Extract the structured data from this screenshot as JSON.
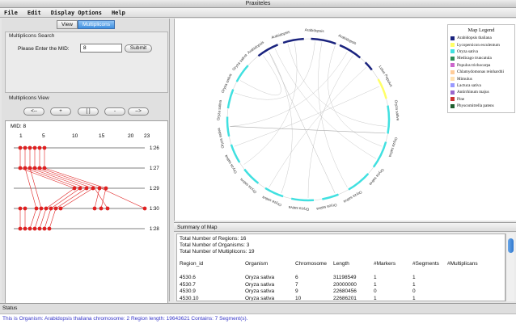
{
  "window": {
    "title": "Praxiteles"
  },
  "menu": [
    "File",
    "Edit",
    "Display Options",
    "Help"
  ],
  "tabs": [
    {
      "label": "View"
    },
    {
      "label": "Multiplicons"
    }
  ],
  "search": {
    "group_label": "Multiplicons Search",
    "prompt": "Please Enter the MID:",
    "value": "8",
    "submit_label": "Submit"
  },
  "mview": {
    "group_label": "Multiplicons View",
    "buttons": [
      "<--",
      "+",
      "[ ]",
      "-",
      "-->"
    ],
    "mid_label": "MID: 8",
    "columns": [
      "1",
      "5",
      "10",
      "15",
      "20",
      "23"
    ],
    "levels": [
      "1:26",
      "1:27",
      "1:29",
      "1:30",
      "1:28"
    ]
  },
  "circle_labels": [
    "Arabidopsis",
    "Arabidopsis",
    "Arabidopsis",
    "Arabidopsis",
    "Oryza sativa",
    "Oryza sativa",
    "Oryza sativa",
    "Oryza sativa",
    "Oryza sativa",
    "Oryza sativa",
    "Oryza sativa",
    "Oryza sativa",
    "Oryza sativa",
    "Oryza sativa",
    "Oryza sativa",
    "Oryza sativa",
    "Oryza sativa",
    "Lotus",
    "Populus"
  ],
  "legend": {
    "title": "Map Legend",
    "items": [
      {
        "name": "Arabidopsis thaliana",
        "color": "#1a237e"
      },
      {
        "name": "Lycopersicon esculentum",
        "color": "#ffff66"
      },
      {
        "name": "Oryza sativa",
        "color": "#40e0e0"
      },
      {
        "name": "Medicago truncatula",
        "color": "#2e8b57"
      },
      {
        "name": "Populus trichocarpa",
        "color": "#cc66cc"
      },
      {
        "name": "Chlamydomonas reinhardtii",
        "color": "#ffcc99"
      },
      {
        "name": "Mimulus",
        "color": "#ffe0b0"
      },
      {
        "name": "Lactuca sativa",
        "color": "#9999ff"
      },
      {
        "name": "Antirrhinum majus",
        "color": "#9966cc"
      },
      {
        "name": "Pine",
        "color": "#cc3333"
      },
      {
        "name": "Physcomitrella patens",
        "color": "#1f5f2f"
      }
    ]
  },
  "summary": {
    "title": "Summary of Map",
    "totals": [
      "Total Number of Regions: 16",
      "Total Number of Organisms: 3",
      "Total Number of Multiplicons: 19"
    ],
    "headers": [
      "Region_id",
      "Organism",
      "Chromosome",
      "Length",
      "#Markers",
      "#Segments",
      "#Multiplicans"
    ],
    "rows": [
      [
        "4530.6",
        "Oryza sativa",
        "6",
        "31198549",
        "1",
        "1",
        ""
      ],
      [
        "4530.7",
        "Oryza sativa",
        "7",
        "20000000",
        "1",
        "1",
        ""
      ],
      [
        "4530.9",
        "Oryza sativa",
        "9",
        "22680456",
        "0",
        "0",
        ""
      ],
      [
        "4530.10",
        "Oryza sativa",
        "10",
        "22686201",
        "1",
        "1",
        ""
      ]
    ]
  },
  "status": {
    "label": "Status",
    "text": "This is Organism: Arabidopsis thaliana chromosome: 2 Region length: 19643621 Contains: 7 Segment(s)."
  }
}
